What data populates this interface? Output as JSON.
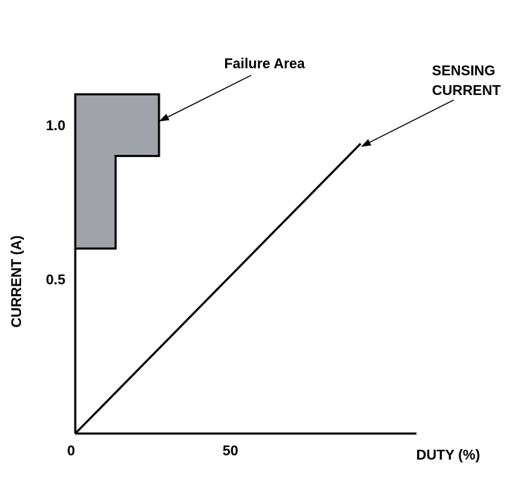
{
  "chart_data": {
    "type": "line",
    "xlabel": "DUTY (%)",
    "ylabel": "CURRENT (A)",
    "x_ticks": [
      {
        "value": 0,
        "label": "0"
      },
      {
        "value": 50,
        "label": "50"
      }
    ],
    "y_ticks": [
      {
        "value": 0.5,
        "label": "0.5"
      },
      {
        "value": 1.0,
        "label": "1.0"
      }
    ],
    "xlim": [
      0,
      110
    ],
    "ylim": [
      0,
      1.1
    ],
    "grid": false,
    "series": [
      {
        "name": "SENSING CURRENT",
        "x": [
          0,
          92
        ],
        "y": [
          0,
          0.94
        ]
      }
    ],
    "failure_area": {
      "label": "Failure Area",
      "color": "#a0a4aa",
      "polygon": [
        [
          0,
          1.1
        ],
        [
          27,
          1.1
        ],
        [
          27,
          0.9
        ],
        [
          13,
          0.9
        ],
        [
          13,
          0.6
        ],
        [
          0,
          0.6
        ]
      ]
    },
    "annotations": [
      {
        "text": "Failure Area",
        "target": "failure_area"
      },
      {
        "text_lines": [
          "SENSING",
          "CURRENT"
        ],
        "target": "series.0"
      }
    ]
  }
}
